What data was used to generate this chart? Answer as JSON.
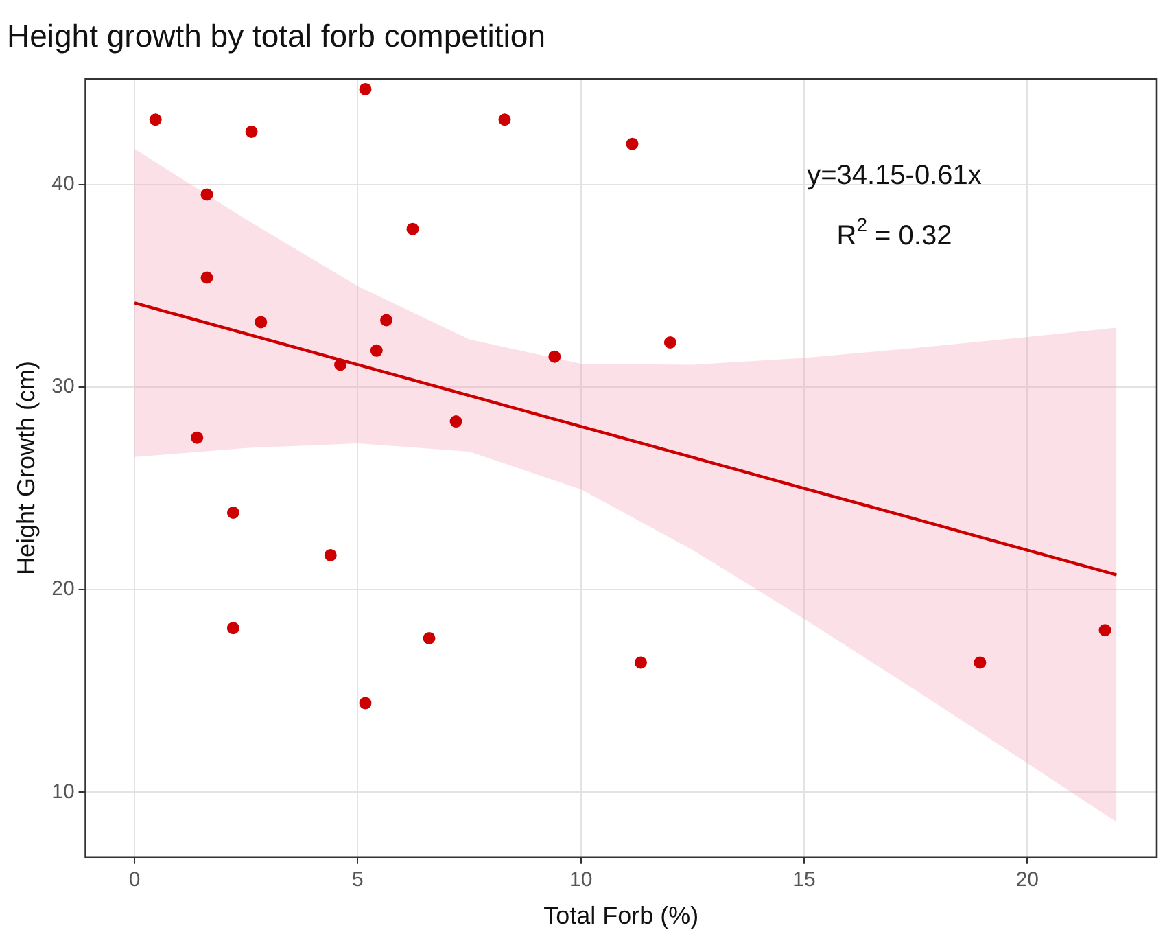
{
  "chart_data": {
    "type": "scatter",
    "title": "Height growth by total forb competition",
    "xlabel": "Total Forb (%)",
    "ylabel": "Height Growth (cm)",
    "xlim": [
      -1.1,
      22.9
    ],
    "ylim": [
      6.8,
      45.2
    ],
    "xticks": [
      0,
      5,
      10,
      15,
      20
    ],
    "yticks": [
      10,
      20,
      30,
      40
    ],
    "grid": true,
    "series": [
      {
        "type": "scatter",
        "marker": "circle",
        "color": "#cc0000",
        "x": [
          0.47,
          1.62,
          1.62,
          1.4,
          2.62,
          2.21,
          2.21,
          2.83,
          4.39,
          4.61,
          5.17,
          5.17,
          5.42,
          5.64,
          6.23,
          6.6,
          7.2,
          8.29,
          9.41,
          11.15,
          11.34,
          12.0,
          18.94,
          21.74
        ],
        "values": [
          43.2,
          39.5,
          35.4,
          27.5,
          42.6,
          23.8,
          18.1,
          33.2,
          21.7,
          31.1,
          44.7,
          14.4,
          31.8,
          33.3,
          37.8,
          17.6,
          28.3,
          43.2,
          31.5,
          42.0,
          16.4,
          32.2,
          16.4,
          18.0
        ]
      },
      {
        "type": "line",
        "marker": "none",
        "color": "#cc0000",
        "x": [
          0,
          2.5,
          5,
          7.5,
          10,
          12.5,
          15,
          17.5,
          20,
          22
        ],
        "values": [
          34.15,
          32.63,
          31.1,
          29.58,
          28.05,
          26.53,
          25.0,
          23.48,
          21.95,
          20.73
        ],
        "lower": [
          26.55,
          26.99,
          27.22,
          26.81,
          24.95,
          21.96,
          18.56,
          15.03,
          11.43,
          8.53
        ],
        "upper": [
          41.75,
          38.27,
          34.98,
          32.35,
          31.15,
          31.1,
          31.44,
          31.93,
          32.47,
          32.93
        ]
      }
    ],
    "annotations": [
      "y=34.15-0.61x",
      "R$^{2}$ = 0.32"
    ]
  }
}
